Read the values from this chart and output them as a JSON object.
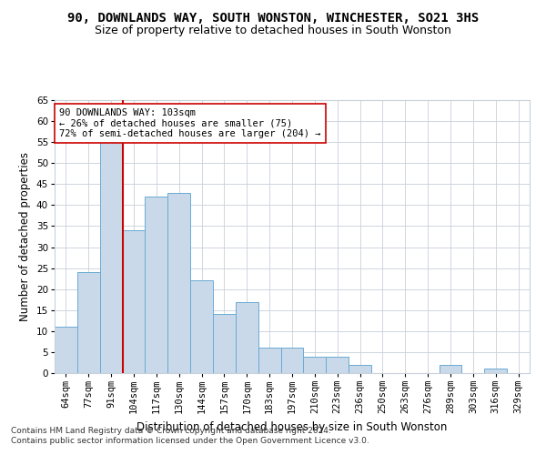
{
  "title": "90, DOWNLANDS WAY, SOUTH WONSTON, WINCHESTER, SO21 3HS",
  "subtitle": "Size of property relative to detached houses in South Wonston",
  "xlabel": "Distribution of detached houses by size in South Wonston",
  "ylabel": "Number of detached properties",
  "categories": [
    "64sqm",
    "77sqm",
    "91sqm",
    "104sqm",
    "117sqm",
    "130sqm",
    "144sqm",
    "157sqm",
    "170sqm",
    "183sqm",
    "197sqm",
    "210sqm",
    "223sqm",
    "236sqm",
    "250sqm",
    "263sqm",
    "276sqm",
    "289sqm",
    "303sqm",
    "316sqm",
    "329sqm"
  ],
  "values": [
    11,
    24,
    55,
    34,
    42,
    43,
    22,
    14,
    17,
    6,
    6,
    4,
    4,
    2,
    0,
    0,
    0,
    2,
    0,
    1,
    0
  ],
  "bar_color": "#c9d9ea",
  "bar_edge_color": "#6aaad4",
  "vline_color": "#cc0000",
  "vline_x": 2.5,
  "annotation_line1": "90 DOWNLANDS WAY: 103sqm",
  "annotation_line2": "← 26% of detached houses are smaller (75)",
  "annotation_line3": "72% of semi-detached houses are larger (204) →",
  "annotation_box_color": "#ffffff",
  "annotation_box_edge": "#cc0000",
  "ylim": [
    0,
    65
  ],
  "yticks": [
    0,
    5,
    10,
    15,
    20,
    25,
    30,
    35,
    40,
    45,
    50,
    55,
    60,
    65
  ],
  "bg_color": "#ffffff",
  "grid_color": "#c8d0da",
  "footer1": "Contains HM Land Registry data © Crown copyright and database right 2024.",
  "footer2": "Contains public sector information licensed under the Open Government Licence v3.0.",
  "title_fontsize": 10,
  "subtitle_fontsize": 9,
  "xlabel_fontsize": 8.5,
  "ylabel_fontsize": 8.5,
  "tick_fontsize": 7.5,
  "annot_fontsize": 7.5,
  "footer_fontsize": 6.5
}
